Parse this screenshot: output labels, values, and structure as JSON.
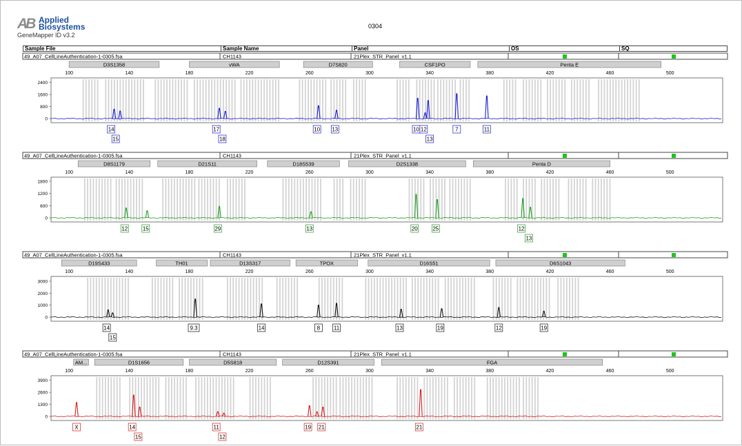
{
  "header": {
    "logo_mark": "AB",
    "brand_line1": "Applied",
    "brand_line2": "Biosystems",
    "product": "GeneMapper ID v3.2",
    "page_number": "0304"
  },
  "table": {
    "col_sample_file": "Sample File",
    "col_sample_name": "Sample Name",
    "col_panel": "Panel",
    "col_os": "OS",
    "col_sq": "SQ"
  },
  "colors": {
    "blue": "#1a1ad6",
    "green": "#1e9e1e",
    "black": "#111111",
    "red": "#d61a1a",
    "bin": "#d3d3d3",
    "marker_bg": "#cfcfcf",
    "qc_green": "#1fc41f"
  },
  "chart_data": [
    {
      "type": "line",
      "dye": "blue",
      "sample_file": "49_A07_CellLineAuthentication-1-0305.fsa",
      "sample_name": "CH1143",
      "panel": "21Plex_STR_Panel_v1.1",
      "x_ticks": [
        100,
        140,
        180,
        220,
        260,
        300,
        340,
        380,
        420,
        460,
        500
      ],
      "y_ticks": [
        0,
        800,
        1600,
        2400
      ],
      "xlim": [
        88,
        535
      ],
      "ylim": [
        0,
        2700
      ],
      "markers": [
        {
          "name": "D3S1358",
          "start": 100,
          "end": 160
        },
        {
          "name": "vWA",
          "start": 180,
          "end": 240
        },
        {
          "name": "D7S820",
          "start": 256,
          "end": 302
        },
        {
          "name": "CSF1PO",
          "start": 320,
          "end": 367
        },
        {
          "name": "Penta E",
          "start": 372,
          "end": 494
        }
      ],
      "bins": [
        [
          109,
          119
        ],
        [
          124,
          150
        ],
        [
          157,
          180
        ],
        [
          183,
          210
        ],
        [
          214,
          240
        ],
        [
          253,
          271
        ],
        [
          274,
          285
        ],
        [
          289,
          298
        ],
        [
          318,
          326
        ],
        [
          331,
          343
        ],
        [
          345,
          358
        ],
        [
          360,
          366
        ],
        [
          389,
          398
        ],
        [
          402,
          414
        ],
        [
          418,
          430
        ],
        [
          434,
          446
        ],
        [
          452,
          480
        ]
      ],
      "peaks": [
        {
          "x": 130,
          "h": 620
        },
        {
          "x": 134,
          "h": 500
        },
        {
          "x": 200,
          "h": 680
        },
        {
          "x": 204,
          "h": 480
        },
        {
          "x": 266,
          "h": 850
        },
        {
          "x": 278,
          "h": 550
        },
        {
          "x": 332,
          "h": 1350
        },
        {
          "x": 337,
          "h": 380
        },
        {
          "x": 339,
          "h": 1200
        },
        {
          "x": 358,
          "h": 1650
        },
        {
          "x": 378,
          "h": 1500
        }
      ],
      "alleles": [
        {
          "label": "14",
          "x": 128,
          "row": 0
        },
        {
          "label": "15",
          "x": 131,
          "row": 1
        },
        {
          "label": "17",
          "x": 198,
          "row": 0
        },
        {
          "label": "18",
          "x": 202,
          "row": 1
        },
        {
          "label": "10",
          "x": 265,
          "row": 0
        },
        {
          "label": "13",
          "x": 277,
          "row": 0
        },
        {
          "label": "10",
          "x": 331,
          "row": 0
        },
        {
          "label": "12",
          "x": 336,
          "row": 0
        },
        {
          "label": "13",
          "x": 340,
          "row": 1
        },
        {
          "label": "7",
          "x": 358,
          "row": 0
        },
        {
          "label": "11",
          "x": 378,
          "row": 0
        }
      ]
    },
    {
      "type": "line",
      "dye": "green",
      "sample_file": "49_A07_CellLineAuthentication-1-0305.fsa",
      "sample_name": "CH1143",
      "panel": "21Plex_STR_Panel_v1.1",
      "x_ticks": [
        100,
        140,
        180,
        220,
        260,
        300,
        340,
        380,
        420,
        460,
        500
      ],
      "y_ticks": [
        0,
        600,
        1200,
        1800
      ],
      "xlim": [
        88,
        535
      ],
      "ylim": [
        0,
        2000
      ],
      "markers": [
        {
          "name": "D8S1179",
          "start": 106,
          "end": 154
        },
        {
          "name": "D21S11",
          "start": 159,
          "end": 225
        },
        {
          "name": "D18S539",
          "start": 232,
          "end": 280
        },
        {
          "name": "D2S1338",
          "start": 286,
          "end": 364
        },
        {
          "name": "Penta D",
          "start": 369,
          "end": 460
        }
      ],
      "bins": [
        [
          110,
          128
        ],
        [
          131,
          150
        ],
        [
          162,
          184
        ],
        [
          186,
          200
        ],
        [
          205,
          218
        ],
        [
          242,
          268
        ],
        [
          276,
          283
        ],
        [
          287,
          298
        ],
        [
          326,
          336
        ],
        [
          340,
          350
        ],
        [
          353,
          368
        ],
        [
          390,
          398
        ],
        [
          402,
          410
        ],
        [
          414,
          426
        ],
        [
          432,
          444
        ],
        [
          448,
          460
        ]
      ],
      "peaks": [
        {
          "x": 138,
          "h": 480
        },
        {
          "x": 152,
          "h": 350
        },
        {
          "x": 200,
          "h": 560
        },
        {
          "x": 261,
          "h": 300
        },
        {
          "x": 331,
          "h": 1150
        },
        {
          "x": 345,
          "h": 900
        },
        {
          "x": 402,
          "h": 950
        },
        {
          "x": 407,
          "h": 520
        }
      ],
      "alleles": [
        {
          "label": "12",
          "x": 137,
          "row": 0
        },
        {
          "label": "15",
          "x": 151,
          "row": 0
        },
        {
          "label": "29",
          "x": 199,
          "row": 0
        },
        {
          "label": "13",
          "x": 260,
          "row": 0
        },
        {
          "label": "20",
          "x": 330,
          "row": 0
        },
        {
          "label": "25",
          "x": 344,
          "row": 0
        },
        {
          "label": "12",
          "x": 401,
          "row": 0
        },
        {
          "label": "13",
          "x": 406,
          "row": 1
        }
      ]
    },
    {
      "type": "line",
      "dye": "black",
      "sample_file": "49_A07_CellLineAuthentication-1-0305.fsa",
      "sample_name": "CH1143",
      "panel": "21Plex_STR_Panel_v1.1",
      "x_ticks": [
        100,
        140,
        180,
        220,
        260,
        300,
        340,
        380,
        420,
        460,
        500
      ],
      "y_ticks": [
        0,
        1000,
        2000,
        3000
      ],
      "xlim": [
        88,
        535
      ],
      "ylim": [
        0,
        3400
      ],
      "markers": [
        {
          "name": "D19S433",
          "start": 95,
          "end": 145
        },
        {
          "name": "TH01",
          "start": 158,
          "end": 192
        },
        {
          "name": "D13S317",
          "start": 194,
          "end": 247
        },
        {
          "name": "TPOX",
          "start": 251,
          "end": 292
        },
        {
          "name": "D16S51",
          "start": 299,
          "end": 380
        },
        {
          "name": "D6S1043",
          "start": 384,
          "end": 470
        }
      ],
      "bins": [
        [
          112,
          140
        ],
        [
          155,
          170
        ],
        [
          173,
          190
        ],
        [
          205,
          230
        ],
        [
          238,
          252
        ],
        [
          266,
          282
        ],
        [
          297,
          325
        ],
        [
          328,
          346
        ],
        [
          350,
          370
        ],
        [
          382,
          394
        ],
        [
          398,
          420
        ],
        [
          425,
          440
        ]
      ],
      "peaks": [
        {
          "x": 126,
          "h": 600
        },
        {
          "x": 129,
          "h": 350
        },
        {
          "x": 184,
          "h": 1500
        },
        {
          "x": 228,
          "h": 1100
        },
        {
          "x": 266,
          "h": 1000
        },
        {
          "x": 278,
          "h": 1150
        },
        {
          "x": 321,
          "h": 650
        },
        {
          "x": 348,
          "h": 700
        },
        {
          "x": 386,
          "h": 800
        },
        {
          "x": 416,
          "h": 500
        }
      ],
      "alleles": [
        {
          "label": "14",
          "x": 125,
          "row": 0
        },
        {
          "label": "15",
          "x": 129,
          "row": 1
        },
        {
          "label": "9.3",
          "x": 183,
          "row": 0
        },
        {
          "label": "14",
          "x": 228,
          "row": 0
        },
        {
          "label": "8",
          "x": 266,
          "row": 0
        },
        {
          "label": "11",
          "x": 278,
          "row": 0
        },
        {
          "label": "13",
          "x": 320,
          "row": 0
        },
        {
          "label": "19",
          "x": 347,
          "row": 0
        },
        {
          "label": "12",
          "x": 386,
          "row": 0
        },
        {
          "label": "19",
          "x": 416,
          "row": 0
        }
      ]
    },
    {
      "type": "line",
      "dye": "red",
      "sample_file": "49_A07_CellLineAuthentication-1-0305.fsa",
      "sample_name": "CH1143",
      "panel": "21Plex_STR_Panel_v1.1",
      "x_ticks": [
        100,
        140,
        180,
        220,
        260,
        300,
        340,
        380,
        420,
        460,
        500
      ],
      "y_ticks": [
        0,
        1300,
        2600,
        3900
      ],
      "xlim": [
        88,
        535
      ],
      "ylim": [
        0,
        4400
      ],
      "markers": [
        {
          "name": "AM...",
          "start": 103,
          "end": 113
        },
        {
          "name": "D1S1656",
          "start": 117,
          "end": 176
        },
        {
          "name": "D5S818",
          "start": 180,
          "end": 238
        },
        {
          "name": "D12S391",
          "start": 242,
          "end": 303
        },
        {
          "name": "FGA",
          "start": 308,
          "end": 455
        }
      ],
      "bins": [
        [
          118,
          135
        ],
        [
          140,
          160
        ],
        [
          164,
          178
        ],
        [
          184,
          210
        ],
        [
          220,
          235
        ],
        [
          262,
          278
        ],
        [
          280,
          302
        ],
        [
          318,
          332
        ],
        [
          336,
          352
        ],
        [
          356,
          370
        ],
        [
          378,
          400
        ],
        [
          402,
          412
        ]
      ],
      "peaks": [
        {
          "x": 105,
          "h": 1500
        },
        {
          "x": 143,
          "h": 2300
        },
        {
          "x": 147,
          "h": 1000
        },
        {
          "x": 199,
          "h": 500
        },
        {
          "x": 203,
          "h": 350
        },
        {
          "x": 260,
          "h": 1150
        },
        {
          "x": 265,
          "h": 500
        },
        {
          "x": 269,
          "h": 1000
        },
        {
          "x": 334,
          "h": 2900
        }
      ],
      "alleles": [
        {
          "label": "X",
          "x": 105,
          "row": 0
        },
        {
          "label": "14",
          "x": 142,
          "row": 0
        },
        {
          "label": "15",
          "x": 146,
          "row": 1
        },
        {
          "label": "11",
          "x": 198,
          "row": 0
        },
        {
          "label": "12",
          "x": 202,
          "row": 1
        },
        {
          "label": "19",
          "x": 259,
          "row": 0
        },
        {
          "label": "21",
          "x": 268,
          "row": 0
        },
        {
          "label": "21",
          "x": 333,
          "row": 0
        }
      ]
    }
  ]
}
